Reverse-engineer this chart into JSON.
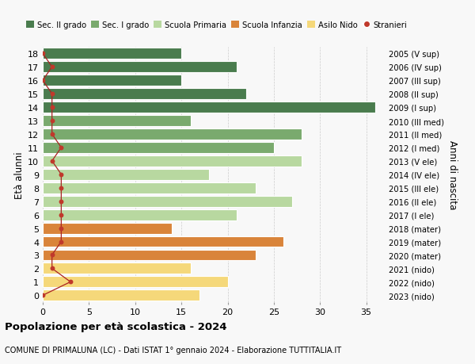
{
  "ages": [
    18,
    17,
    16,
    15,
    14,
    13,
    12,
    11,
    10,
    9,
    8,
    7,
    6,
    5,
    4,
    3,
    2,
    1,
    0
  ],
  "right_labels": [
    "2005 (V sup)",
    "2006 (IV sup)",
    "2007 (III sup)",
    "2008 (II sup)",
    "2009 (I sup)",
    "2010 (III med)",
    "2011 (II med)",
    "2012 (I med)",
    "2013 (V ele)",
    "2014 (IV ele)",
    "2015 (III ele)",
    "2016 (II ele)",
    "2017 (I ele)",
    "2018 (mater)",
    "2019 (mater)",
    "2020 (mater)",
    "2021 (nido)",
    "2022 (nido)",
    "2023 (nido)"
  ],
  "bar_values": [
    15,
    21,
    15,
    22,
    36,
    16,
    28,
    25,
    28,
    18,
    23,
    27,
    21,
    14,
    26,
    23,
    16,
    20,
    17
  ],
  "bar_colors": [
    "#4a7c4e",
    "#4a7c4e",
    "#4a7c4e",
    "#4a7c4e",
    "#4a7c4e",
    "#7aaa6e",
    "#7aaa6e",
    "#7aaa6e",
    "#b8d8a0",
    "#b8d8a0",
    "#b8d8a0",
    "#b8d8a0",
    "#b8d8a0",
    "#d9843a",
    "#d9843a",
    "#d9843a",
    "#f5d87a",
    "#f5d87a",
    "#f5d87a"
  ],
  "stranieri_values": [
    0,
    1,
    0,
    1,
    1,
    1,
    1,
    2,
    1,
    2,
    2,
    2,
    2,
    2,
    2,
    1,
    1,
    3,
    0
  ],
  "legend_labels": [
    "Sec. II grado",
    "Sec. I grado",
    "Scuola Primaria",
    "Scuola Infanzia",
    "Asilo Nido",
    "Stranieri"
  ],
  "legend_colors": [
    "#4a7c4e",
    "#7aaa6e",
    "#b8d8a0",
    "#d9843a",
    "#f5d87a",
    "#c0392b"
  ],
  "ylabel_left": "Età alunni",
  "ylabel_right": "Anni di nascita",
  "xlim": [
    0,
    37
  ],
  "title": "Popolazione per età scolastica - 2024",
  "subtitle": "COMUNE DI PRIMALUNA (LC) - Dati ISTAT 1° gennaio 2024 - Elaborazione TUTTITALIA.IT",
  "bg_color": "#f8f8f8",
  "grid_color": "#cccccc",
  "stranieri_color": "#c0392b",
  "stranieri_line_color": "#aa2222"
}
